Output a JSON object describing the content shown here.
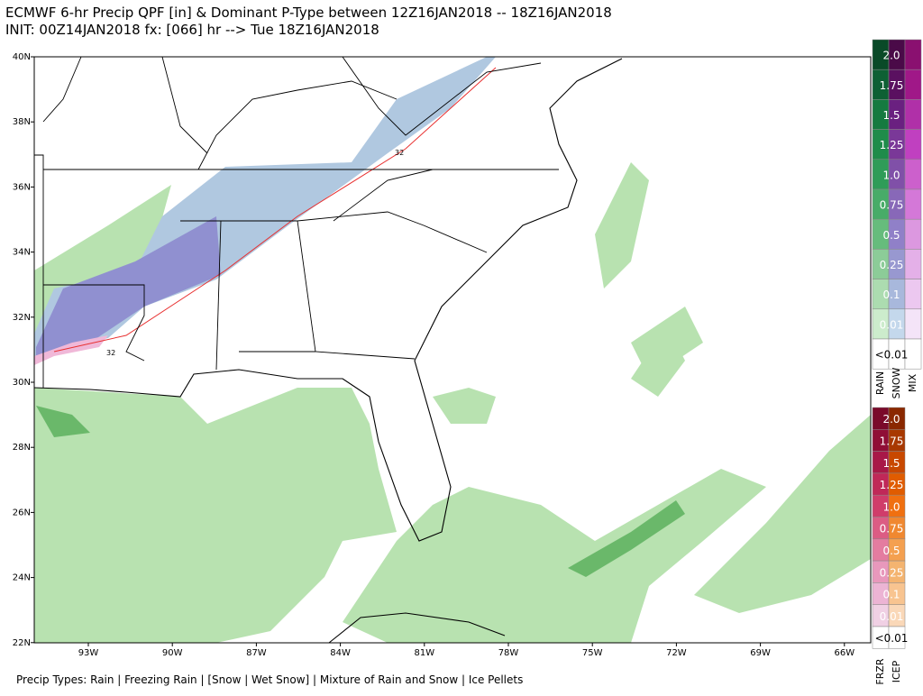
{
  "header": {
    "title": "ECMWF 6-hr Precip QPF [in] & Dominant P-Type between 12Z16JAN2018 -- 18Z16JAN2018",
    "subtitle": "INIT: 00Z14JAN2018 fx: [066] hr --> Tue 18Z16JAN2018"
  },
  "map": {
    "lat_labels": [
      "40N",
      "38N",
      "36N",
      "34N",
      "32N",
      "30N",
      "28N",
      "26N",
      "24N",
      "22N"
    ],
    "lon_labels": [
      "93W",
      "90W",
      "87W",
      "84W",
      "81W",
      "78W",
      "75W",
      "72W",
      "69W",
      "66W"
    ],
    "contour_labels": [
      "32",
      "32"
    ]
  },
  "legend_top": {
    "levels": [
      "2.0",
      "1.75",
      "1.5",
      "1.25",
      "1.0",
      "0.75",
      "0.5",
      "0.25",
      "0.1",
      "0.01",
      "<0.01"
    ],
    "columns": [
      "RAIN",
      "SNOW",
      "MIX"
    ]
  },
  "legend_bottom": {
    "levels": [
      "2.0",
      "1.75",
      "1.5",
      "1.25",
      "1.0",
      "0.75",
      "0.5",
      "0.25",
      "0.1",
      "0.01",
      "<0.01"
    ],
    "columns": [
      "FRZR",
      "ICEP"
    ]
  },
  "footer": "Precip Types: Rain | Freezing Rain | [Snow | Wet Snow] | Mixture of Rain and Snow | Ice Pellets"
}
